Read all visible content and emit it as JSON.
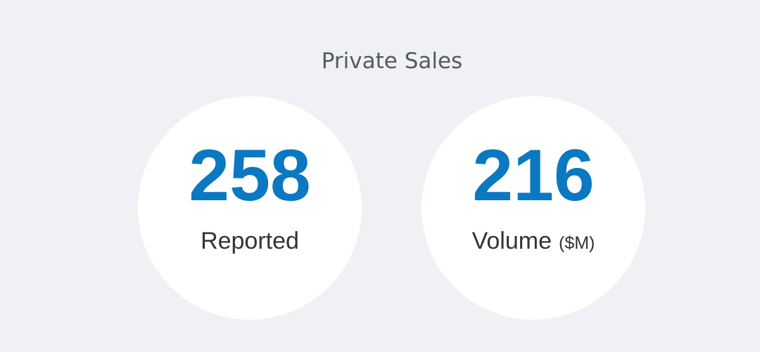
{
  "title": "Private Sales",
  "stats": [
    {
      "value": 258,
      "label": "Reported"
    },
    {
      "value": 216,
      "label": "Volume",
      "unit": "($M)"
    }
  ]
}
